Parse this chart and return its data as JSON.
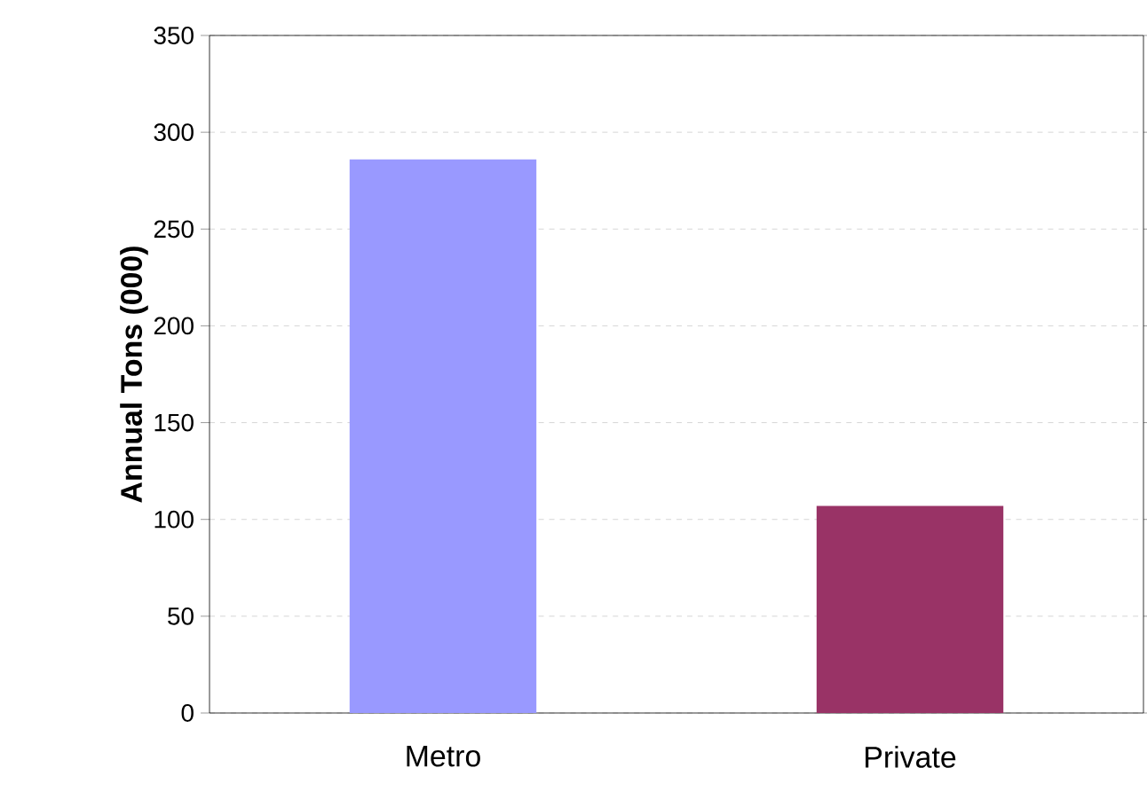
{
  "chart_data": {
    "type": "bar",
    "ylabel": "Annual Tons (000)",
    "categories": [
      "Metro",
      "Private"
    ],
    "values": [
      286,
      107
    ],
    "colors": [
      "#9999ff",
      "#993366"
    ],
    "ylim": [
      0,
      350
    ],
    "yticks": [
      0,
      50,
      100,
      150,
      200,
      250,
      300,
      350
    ],
    "grid": "y"
  }
}
